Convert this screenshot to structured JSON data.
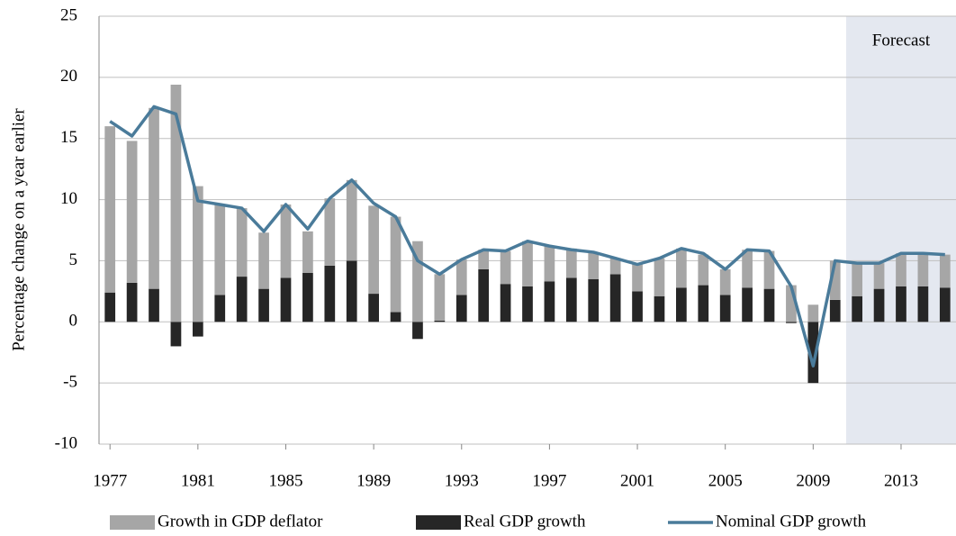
{
  "chart_data": {
    "type": "stacked-bar-line",
    "y_label": "Percentage change on a year earlier",
    "x": [
      1977,
      1978,
      1979,
      1980,
      1981,
      1982,
      1983,
      1984,
      1985,
      1986,
      1987,
      1988,
      1989,
      1990,
      1991,
      1992,
      1993,
      1994,
      1995,
      1996,
      1997,
      1998,
      1999,
      2000,
      2001,
      2002,
      2003,
      2004,
      2005,
      2006,
      2007,
      2008,
      2009,
      2010,
      2011,
      2012,
      2013,
      2014,
      2015
    ],
    "xlim": [
      1976.5,
      2015.5
    ],
    "xticks": [
      1977,
      1981,
      1985,
      1989,
      1993,
      1997,
      2001,
      2005,
      2009,
      2013
    ],
    "ylim": [
      -10,
      25
    ],
    "yticks": [
      25,
      20,
      15,
      10,
      5,
      0,
      -5,
      -10
    ],
    "grid": true,
    "shaded_region": {
      "label": "Forecast",
      "from": 2010.5,
      "color": "#e4e8f0"
    },
    "series": [
      {
        "name": "Real GDP growth",
        "kind": "bar",
        "color": "#262626",
        "values": [
          2.4,
          3.2,
          2.7,
          -2.0,
          -1.2,
          2.2,
          3.7,
          2.7,
          3.6,
          4.0,
          4.6,
          5.0,
          2.3,
          0.8,
          -1.4,
          0.1,
          2.2,
          4.3,
          3.1,
          2.9,
          3.3,
          3.6,
          3.5,
          3.9,
          2.5,
          2.1,
          2.8,
          3.0,
          2.2,
          2.8,
          2.7,
          -0.1,
          -5.0,
          1.8,
          2.1,
          2.7,
          2.9,
          2.9,
          2.8
        ]
      },
      {
        "name": "Growth in GDP deflator",
        "kind": "bar",
        "color": "#a6a6a6",
        "values": [
          13.6,
          11.6,
          14.8,
          19.4,
          11.1,
          7.4,
          5.6,
          4.6,
          6.0,
          3.4,
          5.5,
          6.6,
          7.2,
          7.8,
          6.6,
          3.8,
          2.9,
          1.6,
          2.7,
          3.7,
          2.9,
          2.4,
          2.2,
          1.3,
          2.2,
          3.1,
          3.2,
          2.5,
          2.1,
          3.1,
          3.1,
          3.0,
          1.4,
          3.2,
          2.7,
          2.1,
          2.7,
          2.7,
          2.7
        ]
      },
      {
        "name": "Nominal GDP growth",
        "kind": "line",
        "color": "#4a7b9a",
        "values": [
          16.4,
          15.2,
          17.6,
          17.0,
          9.9,
          9.6,
          9.3,
          7.4,
          9.6,
          7.6,
          10.1,
          11.6,
          9.7,
          8.6,
          5.0,
          3.9,
          5.1,
          5.9,
          5.8,
          6.6,
          6.2,
          5.9,
          5.7,
          5.2,
          4.7,
          5.2,
          6.0,
          5.6,
          4.3,
          5.9,
          5.8,
          2.9,
          -3.6,
          5.0,
          4.8,
          4.8,
          5.6,
          5.6,
          5.5
        ]
      }
    ],
    "legend_order": [
      1,
      0,
      2
    ]
  }
}
